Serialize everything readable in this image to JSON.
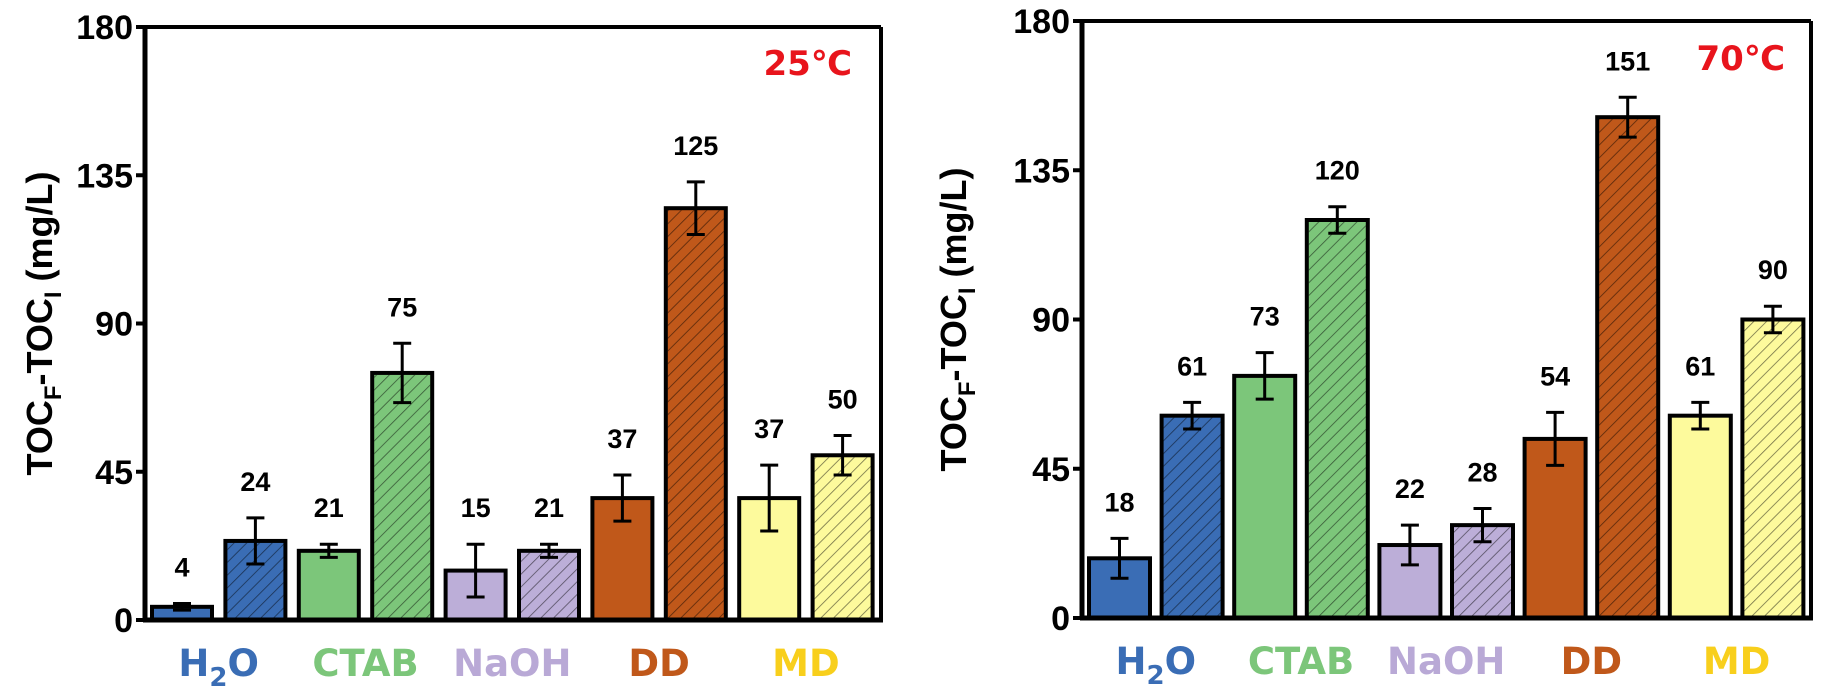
{
  "chart_data": [
    {
      "type": "bar",
      "title": "25℃",
      "title_color": "#e8141c",
      "title_position": "top-right",
      "ylabel": "TOC_F-TOC_I (mg/L)",
      "ylabel_parts": {
        "main1": "TOC",
        "sub1": "F",
        "main2": "-TOC",
        "sub2": "I",
        "unit": " (mg/L)"
      },
      "xlabel": "",
      "ylim": [
        0,
        180
      ],
      "yticks": [
        0,
        45,
        90,
        135,
        180
      ],
      "grid": false,
      "groups": [
        {
          "name": "H2O",
          "label_main": "H",
          "label_sub": "2",
          "label_end": "O",
          "color": "#3a6db5"
        },
        {
          "name": "CTAB",
          "label_main": "CTAB",
          "color": "#7cc67a"
        },
        {
          "name": "NaOH",
          "label_main": "NaOH",
          "color": "#b9a9d6"
        },
        {
          "name": "DD",
          "label_main": "DD",
          "color": "#c0581a"
        },
        {
          "name": "MD",
          "label_main": "MD",
          "color": "#f8cf1c"
        }
      ],
      "bars": [
        {
          "group": "H2O",
          "hatched": false,
          "value": 4,
          "error": 1,
          "label": "4",
          "fill": "#3a6db5"
        },
        {
          "group": "H2O",
          "hatched": true,
          "value": 24,
          "error": 7,
          "label": "24",
          "fill": "#3a6db5"
        },
        {
          "group": "CTAB",
          "hatched": false,
          "value": 21,
          "error": 2,
          "label": "21",
          "fill": "#7cc67a"
        },
        {
          "group": "CTAB",
          "hatched": true,
          "value": 75,
          "error": 9,
          "label": "75",
          "fill": "#7cc67a"
        },
        {
          "group": "NaOH",
          "hatched": false,
          "value": 15,
          "error": 8,
          "label": "15",
          "fill": "#bcaed8"
        },
        {
          "group": "NaOH",
          "hatched": true,
          "value": 21,
          "error": 2,
          "label": "21",
          "fill": "#bcaed8"
        },
        {
          "group": "DD",
          "hatched": false,
          "value": 37,
          "error": 7,
          "label": "37",
          "fill": "#c0581a"
        },
        {
          "group": "DD",
          "hatched": true,
          "value": 125,
          "error": 8,
          "label": "125",
          "fill": "#c0581a"
        },
        {
          "group": "MD",
          "hatched": false,
          "value": 37,
          "error": 10,
          "label": "37",
          "fill": "#fdfa9c"
        },
        {
          "group": "MD",
          "hatched": true,
          "value": 50,
          "error": 6,
          "label": "50",
          "fill": "#fdfa9c"
        }
      ]
    },
    {
      "type": "bar",
      "title": "70℃",
      "title_color": "#e8141c",
      "title_position": "top-right",
      "ylabel": "TOC_F-TOC_I (mg/L)",
      "ylabel_parts": {
        "main1": "TOC",
        "sub1": "F",
        "main2": "-TOC",
        "sub2": "I",
        "unit": " (mg/L)"
      },
      "xlabel": "",
      "ylim": [
        0,
        180
      ],
      "yticks": [
        0,
        45,
        90,
        135,
        180
      ],
      "grid": false,
      "groups": [
        {
          "name": "H2O",
          "label_main": "H",
          "label_sub": "2",
          "label_end": "O",
          "color": "#3a6db5"
        },
        {
          "name": "CTAB",
          "label_main": "CTAB",
          "color": "#7cc67a"
        },
        {
          "name": "NaOH",
          "label_main": "NaOH",
          "color": "#b9a9d6"
        },
        {
          "name": "DD",
          "label_main": "DD",
          "color": "#c0581a"
        },
        {
          "name": "MD",
          "label_main": "MD",
          "color": "#f8cf1c"
        }
      ],
      "bars": [
        {
          "group": "H2O",
          "hatched": false,
          "value": 18,
          "error": 6,
          "label": "18",
          "fill": "#3a6db5"
        },
        {
          "group": "H2O",
          "hatched": true,
          "value": 61,
          "error": 4,
          "label": "61",
          "fill": "#3a6db5"
        },
        {
          "group": "CTAB",
          "hatched": false,
          "value": 73,
          "error": 7,
          "label": "73",
          "fill": "#7cc67a"
        },
        {
          "group": "CTAB",
          "hatched": true,
          "value": 120,
          "error": 4,
          "label": "120",
          "fill": "#7cc67a"
        },
        {
          "group": "NaOH",
          "hatched": false,
          "value": 22,
          "error": 6,
          "label": "22",
          "fill": "#bcaed8"
        },
        {
          "group": "NaOH",
          "hatched": true,
          "value": 28,
          "error": 5,
          "label": "28",
          "fill": "#bcaed8"
        },
        {
          "group": "DD",
          "hatched": false,
          "value": 54,
          "error": 8,
          "label": "54",
          "fill": "#c0581a"
        },
        {
          "group": "DD",
          "hatched": true,
          "value": 151,
          "error": 6,
          "label": "151",
          "fill": "#c0581a"
        },
        {
          "group": "MD",
          "hatched": false,
          "value": 61,
          "error": 4,
          "label": "61",
          "fill": "#fdfa9c"
        },
        {
          "group": "MD",
          "hatched": true,
          "value": 90,
          "error": 4,
          "label": "90",
          "fill": "#fdfa9c"
        }
      ]
    }
  ]
}
